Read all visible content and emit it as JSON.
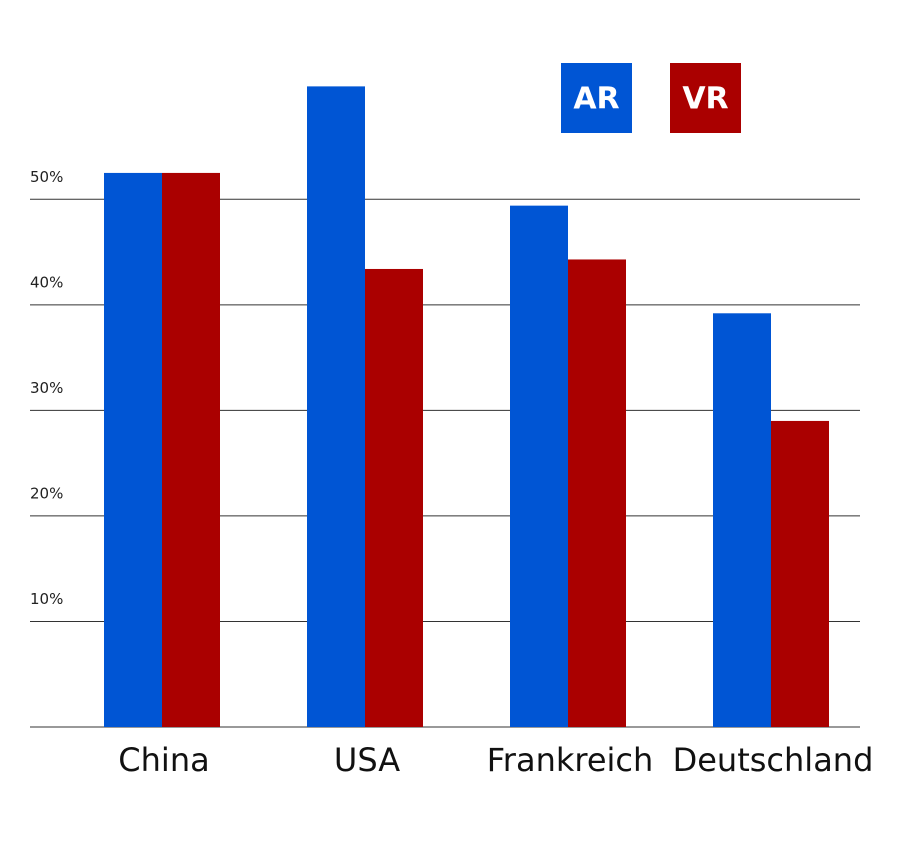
{
  "chart_data": {
    "type": "bar",
    "categories": [
      "China",
      "USA",
      "Frankreich",
      "Deutschland"
    ],
    "series": [
      {
        "name": "AR",
        "color": "#0055d4",
        "values": [
          52.5,
          60.7,
          49.4,
          39.2
        ]
      },
      {
        "name": "VR",
        "color": "#aa0000",
        "values": [
          52.5,
          43.4,
          44.3,
          29.0
        ]
      }
    ],
    "ylim": [
      0,
      65
    ],
    "yticks": [
      {
        "value": 10,
        "label": "10%"
      },
      {
        "value": 20,
        "label": "20%"
      },
      {
        "value": 30,
        "label": "30%"
      },
      {
        "value": 40,
        "label": "40%"
      },
      {
        "value": 50,
        "label": "50%"
      }
    ],
    "grid": true
  }
}
